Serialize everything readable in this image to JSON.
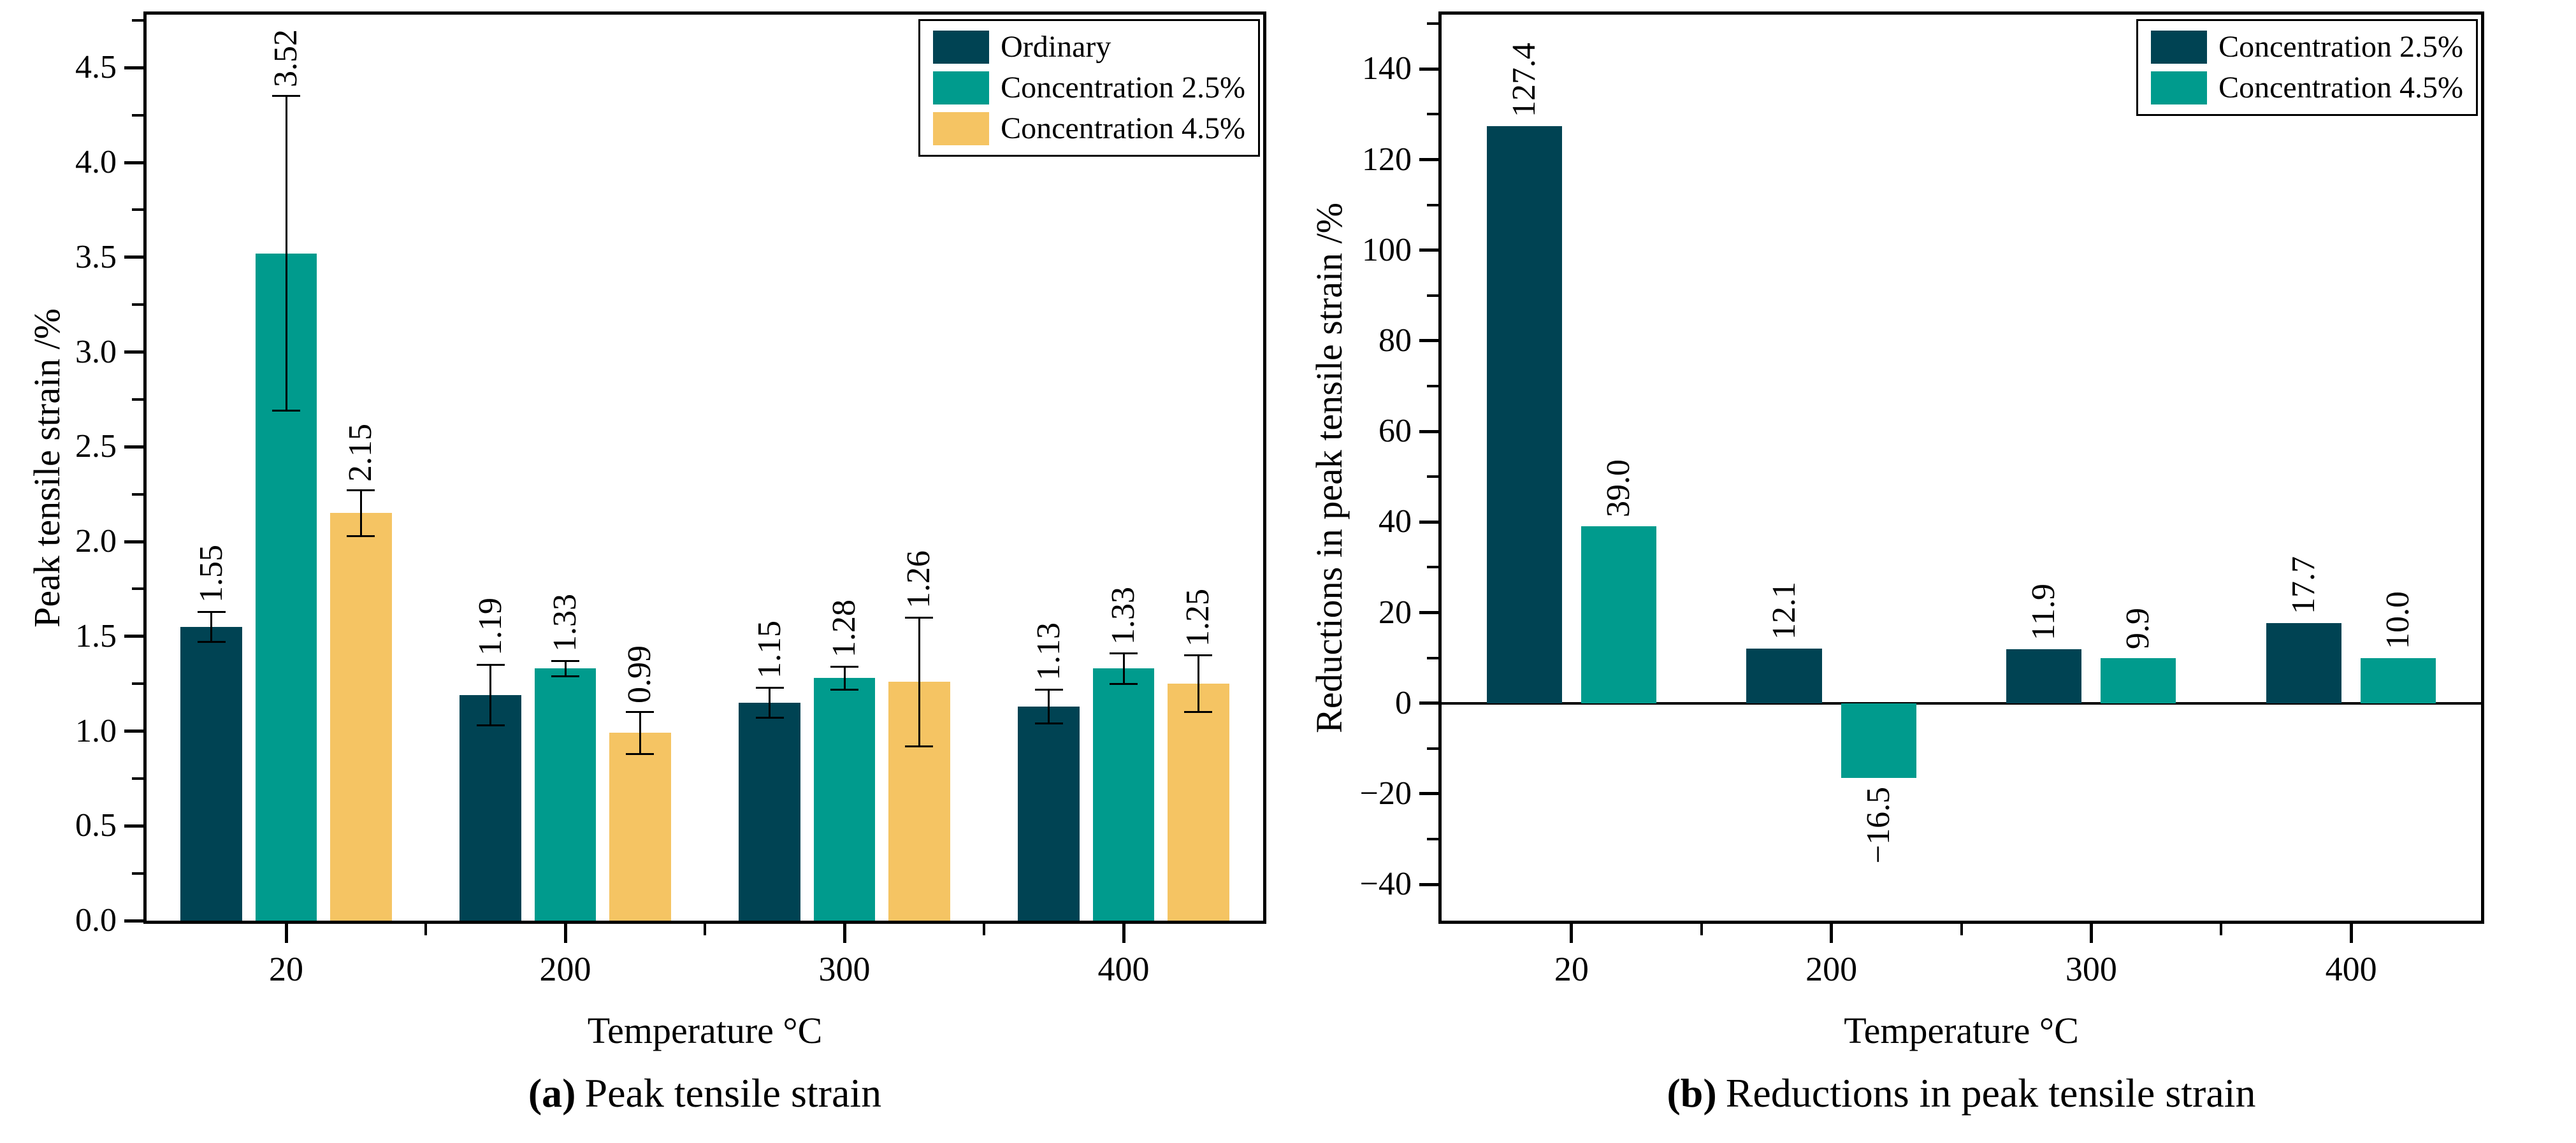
{
  "colors": {
    "navy": "#004353",
    "teal": "#009B8D",
    "gold": "#F5C463",
    "axis": "#000000"
  },
  "chart_data": [
    {
      "id": "a",
      "type": "bar",
      "title": "Peak tensile strain",
      "caption_marker": "(a)",
      "xlabel": "Temperature °C",
      "ylabel": "Peak tensile strain /%",
      "categories": [
        "20",
        "200",
        "300",
        "400"
      ],
      "series": [
        {
          "name": "Ordinary",
          "color_key": "navy",
          "values": [
            1.55,
            1.19,
            1.15,
            1.13
          ],
          "errors": [
            0.08,
            0.16,
            0.08,
            0.09
          ],
          "labels": [
            "1.55",
            "1.19",
            "1.15",
            "1.13"
          ]
        },
        {
          "name": "Concentration 2.5%",
          "color_key": "teal",
          "values": [
            3.52,
            1.33,
            1.28,
            1.33
          ],
          "errors": [
            0.83,
            0.04,
            0.06,
            0.08
          ],
          "labels": [
            "3.52",
            "1.33",
            "1.28",
            "1.33"
          ]
        },
        {
          "name": "Concentration 4.5%",
          "color_key": "gold",
          "values": [
            2.15,
            0.99,
            1.26,
            1.25
          ],
          "errors": [
            0.12,
            0.11,
            0.34,
            0.15
          ],
          "labels": [
            "2.15",
            "0.99",
            "1.26",
            "1.25"
          ]
        }
      ],
      "ylim": [
        0,
        4.78
      ],
      "ytick_step": 0.5,
      "ytick_minor_step": 0.25,
      "ytick_values": [
        0,
        0.5,
        1.0,
        1.5,
        2.0,
        2.5,
        3.0,
        3.5,
        4.0,
        4.5
      ],
      "ytick_labels": [
        "0.0",
        "0.5",
        "1.0",
        "1.5",
        "2.0",
        "2.5",
        "3.0",
        "3.5",
        "4.0",
        "4.5"
      ],
      "legend_position": "top-right",
      "grid": false,
      "zero_line": false,
      "bar_label_rotation_deg": 90
    },
    {
      "id": "b",
      "type": "bar",
      "title": "Reductions in peak tensile strain",
      "caption_marker": "(b)",
      "xlabel": "Temperature °C",
      "ylabel": "Reductions in peak tensile strain /%",
      "categories": [
        "20",
        "200",
        "300",
        "400"
      ],
      "series": [
        {
          "name": "Concentration 2.5%",
          "color_key": "navy",
          "values": [
            127.4,
            12.1,
            11.9,
            17.7
          ],
          "labels": [
            "127.4",
            "12.1",
            "11.9",
            "17.7"
          ]
        },
        {
          "name": "Concentration 4.5%",
          "color_key": "teal",
          "values": [
            39.0,
            -16.5,
            9.9,
            10.0
          ],
          "labels": [
            "39.0",
            "−16.5",
            "9.9",
            "10.0"
          ]
        }
      ],
      "ylim": [
        -48,
        152
      ],
      "ytick_step": 20,
      "ytick_minor_step": 10,
      "ytick_values": [
        -40,
        -20,
        0,
        20,
        40,
        60,
        80,
        100,
        120,
        140
      ],
      "ytick_labels": [
        "−40",
        "−20",
        "0",
        "20",
        "40",
        "60",
        "80",
        "100",
        "120",
        "140"
      ],
      "legend_position": "top-right",
      "grid": false,
      "zero_line": true,
      "bar_label_rotation_deg": 90
    }
  ]
}
